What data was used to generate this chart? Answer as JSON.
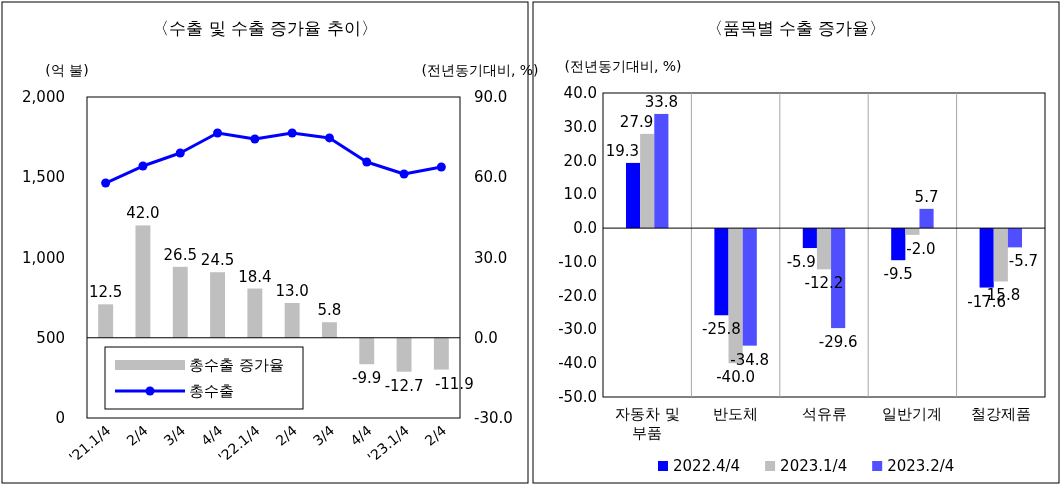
{
  "chart_data": [
    {
      "type": "bar",
      "title": "〈수출 및 수출 증가율 추이〉",
      "ylabel": "(억 불)",
      "y2label": "(전년동기대비, %)",
      "categories": [
        "'21.1/4",
        "2/4",
        "3/4",
        "4/4",
        "'22.1/4",
        "2/4",
        "3/4",
        "4/4",
        "'23.1/4",
        "2/4"
      ],
      "series": [
        {
          "name": "총수출 증가율",
          "axis": "y2",
          "color": "#bfbfbf",
          "values": [
            12.5,
            42.0,
            26.5,
            24.5,
            18.4,
            13.0,
            5.8,
            -9.9,
            -12.7,
            -11.9
          ],
          "value_labels": [
            "12.5",
            "42.0",
            "26.5",
            "24.5",
            "18.4",
            "13.0",
            "5.8",
            "-9.9",
            "-12.7",
            "-11.9"
          ]
        },
        {
          "name": "총수출",
          "type": "line",
          "axis": "y",
          "color": "#0000ff",
          "marker": "circle",
          "values": [
            1464,
            1570,
            1651,
            1776,
            1738,
            1776,
            1745,
            1595,
            1520,
            1564
          ]
        }
      ],
      "ylim": [
        0,
        2000
      ],
      "yticks": [
        {
          "value": 0,
          "label": "0"
        },
        {
          "value": 500,
          "label": "500"
        },
        {
          "value": 1000,
          "label": "1,000"
        },
        {
          "value": 1500,
          "label": "1,500"
        },
        {
          "value": 2000,
          "label": "2,000"
        }
      ],
      "y2lim": [
        -30,
        90
      ],
      "y2ticks": [
        {
          "value": -30,
          "label": "-30.0"
        },
        {
          "value": 0,
          "label": "0.0"
        },
        {
          "value": 30,
          "label": "30.0"
        },
        {
          "value": 60,
          "label": "60.0"
        },
        {
          "value": 90,
          "label": "90.0"
        }
      ],
      "ref_lines": [
        {
          "axis": "y2",
          "value": 0
        }
      ],
      "legend": "bottom left"
    },
    {
      "type": "bar",
      "title": "〈품목별 수출 증가율〉",
      "ylabel": "(전년동기대비, %)",
      "categories": [
        "자동차 및 부품",
        "반도체",
        "석유류",
        "일반기계",
        "철강제품"
      ],
      "series": [
        {
          "name": "2022.4/4",
          "color": "#0000ff",
          "values": [
            19.3,
            -25.8,
            -5.9,
            -9.5,
            -17.6
          ],
          "value_labels": [
            "19.3",
            "-25.8",
            "-5.9",
            "-9.5",
            "-17.6"
          ]
        },
        {
          "name": "2023.1/4",
          "color": "#bfbfbf",
          "values": [
            27.9,
            -40.0,
            -12.2,
            -2.0,
            -15.8
          ],
          "value_labels": [
            "27.9",
            "-40.0",
            "-12.2",
            "-2.0",
            "-15.8"
          ]
        },
        {
          "name": "2023.2/4",
          "color": "#4f4fff",
          "values": [
            33.8,
            -34.8,
            -29.6,
            5.7,
            -5.7
          ],
          "value_labels": [
            "33.8",
            "-34.8",
            "-29.6",
            "5.7",
            "-5.7"
          ]
        }
      ],
      "ref_lines": [
        {
          "axis": "y",
          "value": 0
        }
      ],
      "ylim": [
        -50,
        40
      ],
      "yticks": [
        {
          "value": -50,
          "label": "-50.0"
        },
        {
          "value": -40,
          "label": "-40.0"
        },
        {
          "value": -30,
          "label": "-30.0"
        },
        {
          "value": -20,
          "label": "-20.0"
        },
        {
          "value": -10,
          "label": "-10.0"
        },
        {
          "value": 0,
          "label": "0.0"
        },
        {
          "value": 10,
          "label": "10.0"
        },
        {
          "value": 20,
          "label": "20.0"
        },
        {
          "value": 30,
          "label": "30.0"
        },
        {
          "value": 40,
          "label": "40.0"
        }
      ],
      "legend": "bottom",
      "grid": "x"
    }
  ]
}
